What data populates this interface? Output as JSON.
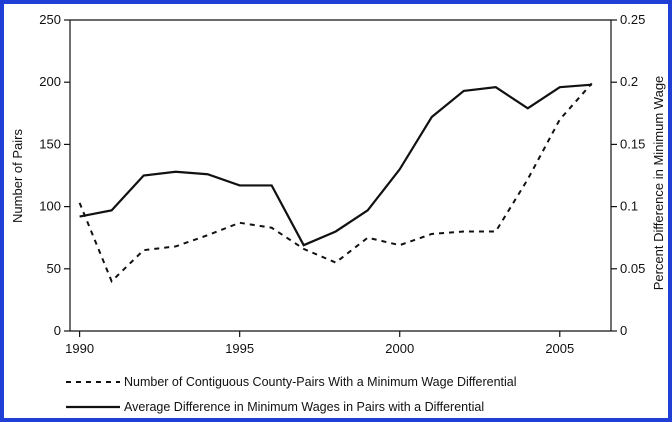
{
  "chart_data": {
    "type": "line",
    "x": [
      1990,
      1991,
      1992,
      1993,
      1994,
      1995,
      1996,
      1997,
      1998,
      1999,
      2000,
      2001,
      2002,
      2003,
      2004,
      2005,
      2006
    ],
    "xticks": [
      "1990",
      "1995",
      "2000",
      "2005"
    ],
    "xtick_values": [
      1990,
      1995,
      2000,
      2005
    ],
    "xlim": [
      1989.7,
      2006.6
    ],
    "ylabel": "Number of Pairs",
    "ylabel_right": "Percent Difference in Minimum Wage",
    "ylim": [
      0,
      250
    ],
    "ylim_right": [
      0,
      0.25
    ],
    "yticks": [
      "0",
      "50",
      "100",
      "150",
      "200",
      "250"
    ],
    "ytick_values": [
      0,
      50,
      100,
      150,
      200,
      250
    ],
    "yticks_right": [
      "0",
      "0.05",
      "0.1",
      "0.15",
      "0.2",
      "0.25"
    ],
    "ytick_values_right": [
      0,
      0.05,
      0.1,
      0.15,
      0.2,
      0.25
    ],
    "grid": false,
    "legend_position": "bottom",
    "series": [
      {
        "name": "Number of Contiguous County-Pairs With a Minimum Wage Differential",
        "axis": "left",
        "style": "dashed",
        "values": [
          103,
          40,
          65,
          68,
          77,
          87,
          83,
          66,
          55,
          75,
          69,
          78,
          80,
          80,
          122,
          170,
          199
        ]
      },
      {
        "name": "Average Difference in Minimum Wages in Pairs with a Differential",
        "axis": "right",
        "style": "solid",
        "values": [
          0.092,
          0.097,
          0.125,
          0.128,
          0.126,
          0.117,
          0.117,
          0.069,
          0.08,
          0.097,
          0.13,
          0.172,
          0.193,
          0.196,
          0.179,
          0.196,
          0.198
        ]
      }
    ]
  },
  "colors": {
    "frame": "#1f3fd6",
    "lines": "#111111"
  }
}
